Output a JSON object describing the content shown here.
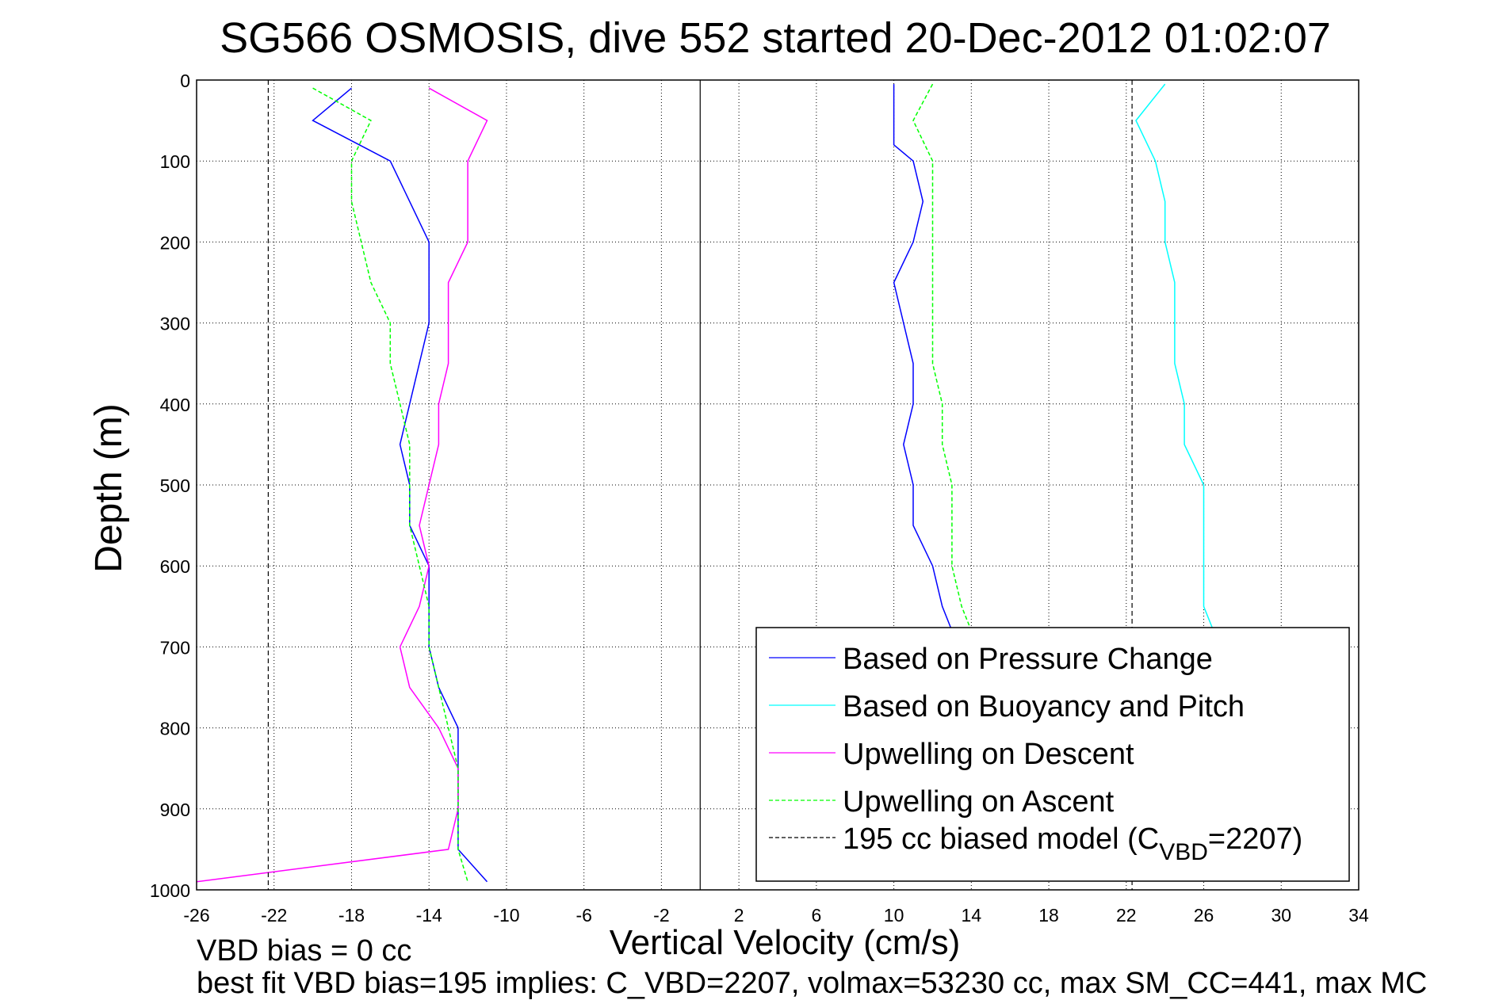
{
  "chart_data": {
    "type": "line",
    "title": "SG566 OSMOSIS, dive 552 started 20-Dec-2012 01:02:07",
    "xlabel": "Vertical Velocity (cm/s)",
    "ylabel": "Depth (m)",
    "xlim": [
      -26,
      34
    ],
    "ylim": [
      0,
      1000
    ],
    "y_reversed": true,
    "grid": true,
    "xticks": [
      -26,
      -22,
      -18,
      -14,
      -10,
      -6,
      -2,
      2,
      6,
      10,
      14,
      18,
      22,
      26,
      30,
      34
    ],
    "yticks": [
      0,
      100,
      200,
      300,
      400,
      500,
      600,
      700,
      800,
      900,
      1000
    ],
    "legend_position": "bottom-right",
    "legend": [
      {
        "label": "Based on Pressure Change",
        "color": "#0000ff",
        "style": "solid"
      },
      {
        "label": "Based on Buoyancy and Pitch",
        "color": "#00ffff",
        "style": "solid"
      },
      {
        "label": "Upwelling on Descent",
        "color": "#ff00ff",
        "style": "solid"
      },
      {
        "label": "Upwelling on Ascent",
        "color": "#00ff00",
        "style": "dashed"
      },
      {
        "label_main": "195 cc biased model (C",
        "label_sub": "VBD",
        "label_end": "=2207)",
        "color": "#000000",
        "style": "dashed"
      }
    ],
    "series": [
      {
        "name": "Based on Pressure Change (descent)",
        "color": "#0000ff",
        "style": "solid",
        "depth": [
          10,
          50,
          100,
          150,
          200,
          250,
          300,
          350,
          400,
          450,
          500,
          550,
          600,
          650,
          700,
          750,
          800,
          850,
          900,
          950,
          990
        ],
        "values": [
          -18,
          -20,
          -16,
          -15,
          -14,
          -14,
          -14,
          -14.5,
          -15,
          -15.5,
          -15,
          -15,
          -14,
          -14,
          -14,
          -13.5,
          -12.5,
          -12.5,
          -12.5,
          -12.5,
          -11
        ]
      },
      {
        "name": "Based on Pressure Change (ascent)",
        "color": "#0000ff",
        "style": "solid",
        "depth": [
          5,
          50,
          80,
          100,
          150,
          200,
          250,
          300,
          350,
          400,
          450,
          500,
          550,
          600,
          650,
          680
        ],
        "values": [
          10,
          10,
          10,
          11,
          11.5,
          11,
          10,
          10.5,
          11,
          11,
          10.5,
          11,
          11,
          12,
          12.5,
          13
        ]
      },
      {
        "name": "Based on Buoyancy and Pitch",
        "color": "#00ffff",
        "style": "solid",
        "depth": [
          5,
          50,
          100,
          150,
          200,
          250,
          300,
          350,
          400,
          450,
          500,
          550,
          600,
          650,
          680
        ],
        "values": [
          24,
          22.5,
          23.5,
          24,
          24,
          24.5,
          24.5,
          24.5,
          25,
          25,
          26,
          26,
          26,
          26,
          26.5
        ]
      },
      {
        "name": "Upwelling on Descent",
        "color": "#ff00ff",
        "style": "solid",
        "depth": [
          10,
          50,
          100,
          150,
          200,
          250,
          300,
          350,
          400,
          450,
          500,
          550,
          600,
          650,
          700,
          750,
          800,
          850,
          900,
          950,
          990
        ],
        "values": [
          -14,
          -11,
          -12,
          -12,
          -12,
          -13,
          -13,
          -13,
          -13.5,
          -13.5,
          -14,
          -14.5,
          -14,
          -14.5,
          -15.5,
          -15,
          -13.5,
          -12.5,
          -12.5,
          -13,
          -26
        ]
      },
      {
        "name": "Upwelling on Ascent (descent side)",
        "color": "#00ff00",
        "style": "dashed",
        "depth": [
          10,
          50,
          100,
          150,
          200,
          250,
          300,
          350,
          400,
          450,
          500,
          550,
          600,
          650,
          700,
          750,
          800,
          850,
          900,
          950,
          990
        ],
        "values": [
          -20,
          -17,
          -18,
          -18,
          -17.5,
          -17,
          -16,
          -16,
          -15.5,
          -15,
          -15,
          -15,
          -14.5,
          -14,
          -14,
          -13.5,
          -13,
          -12.5,
          -12.5,
          -12.5,
          -12
        ]
      },
      {
        "name": "Upwelling on Ascent (ascent side)",
        "color": "#00ff00",
        "style": "dashed",
        "depth": [
          5,
          50,
          100,
          150,
          200,
          250,
          300,
          350,
          400,
          450,
          500,
          550,
          600,
          650,
          680
        ],
        "values": [
          12,
          11,
          12,
          12,
          12,
          12,
          12,
          12,
          12.5,
          12.5,
          13,
          13,
          13,
          13.5,
          14
        ]
      },
      {
        "name": "195 cc biased model (descent)",
        "color": "#000000",
        "style": "dashed",
        "depth": [
          0,
          1000
        ],
        "values": [
          -22.3,
          -22.3
        ]
      },
      {
        "name": "195 cc biased model (ascent)",
        "color": "#000000",
        "style": "dashed",
        "depth": [
          0,
          1000
        ],
        "values": [
          22.3,
          22.3
        ]
      }
    ],
    "zero_line": 0
  },
  "annotations": {
    "vbd_bias": "VBD bias = 0 cc",
    "best_fit": "best fit VBD bias=195 implies: C_VBD=2207, volmax=53230 cc, max SM_CC=441, max MC"
  }
}
